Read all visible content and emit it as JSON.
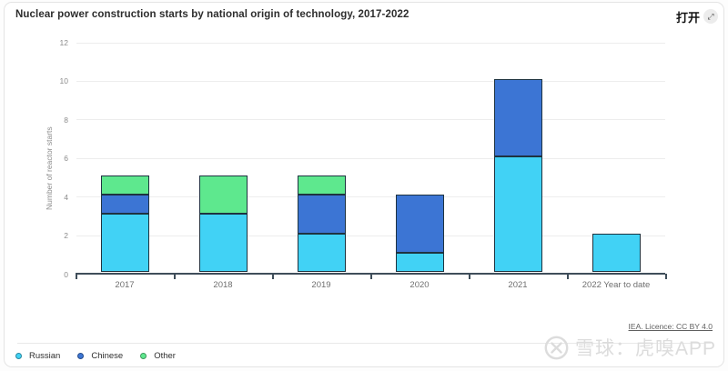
{
  "header": {
    "title": "Nuclear power construction starts by national origin of technology, 2017-2022",
    "open_label": "打开",
    "open_icon_glyph": "⤢"
  },
  "chart_data": {
    "type": "bar",
    "subtype": "stacked-vertical",
    "title": "Nuclear power construction starts by national origin of technology, 2017-2022",
    "xlabel": "",
    "ylabel": "Number of reactor starts",
    "categories": [
      "2017",
      "2018",
      "2019",
      "2020",
      "2021",
      "2022 Year to date"
    ],
    "series": [
      {
        "name": "Russian",
        "color": "#41d2f5",
        "values": [
          3,
          3,
          2,
          1,
          6,
          2
        ]
      },
      {
        "name": "Chinese",
        "color": "#3c75d4",
        "values": [
          1,
          0,
          2,
          3,
          4,
          0
        ]
      },
      {
        "name": "Other",
        "color": "#5ee88e",
        "values": [
          1,
          2,
          1,
          0,
          0,
          0
        ]
      }
    ],
    "totals": [
      5,
      5,
      5,
      4,
      10,
      2
    ],
    "ylim": [
      0,
      12
    ],
    "yticks": [
      0,
      2,
      4,
      6,
      8,
      10,
      12
    ],
    "grid": true,
    "legend_position": "bottom-left",
    "bar_border_color": "#1e3340",
    "axis_color": "#3f4e5a"
  },
  "footer": {
    "licence": "IEA. Licence: CC BY 4.0"
  },
  "watermark": {
    "text": "雪球：虎嗅APP"
  }
}
